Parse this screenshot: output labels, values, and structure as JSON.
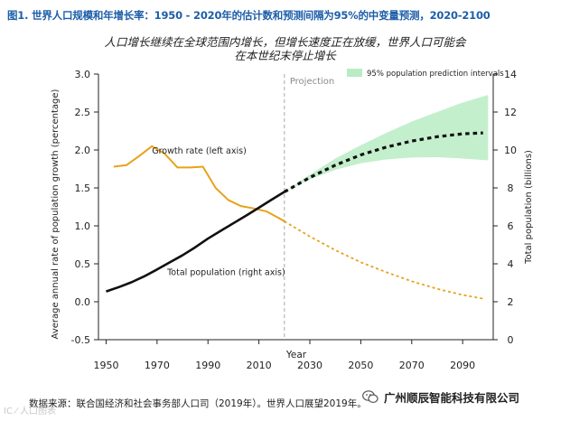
{
  "header": {
    "title": "图1. 世界人口规模和年增长率：1950 - 2020年的估计数和预测间隔为95%的中变量预测，2020-2100",
    "subtitle_line1": "人口增长继续在全球范围内增长，但增长速度正在放缓，世界人口可能会",
    "subtitle_line2": "在本世纪末停止增长"
  },
  "chart_data": {
    "type": "line",
    "xlabel": "Year",
    "ylabel_left": "Average annual rate of population growth (percentage)",
    "ylabel_right": "Total population (billions)",
    "x_ticks": [
      1950,
      1970,
      1990,
      2010,
      2030,
      2050,
      2070,
      2090
    ],
    "y_left_ticks": [
      "-0.5",
      "0.0",
      "0.5",
      "1.0",
      "1.5",
      "2.0",
      "2.5",
      "3.0"
    ],
    "y_left_lim": [
      -0.5,
      3.0
    ],
    "y_right_ticks": [
      "0",
      "2",
      "4",
      "6",
      "8",
      "10",
      "12",
      "14"
    ],
    "y_right_lim": [
      0,
      14
    ],
    "x_lim": [
      1947,
      2102
    ],
    "projection_year": 2020,
    "projection_label": "Projection",
    "legend_label": "95% population prediction intervals",
    "colors": {
      "growth": "#e8a21a",
      "population": "#111111",
      "band": "#b9ecc4"
    },
    "series": [
      {
        "name": "Growth rate (left axis)",
        "axis": "left",
        "estimate": {
          "x": [
            1953,
            1958,
            1963,
            1968,
            1973,
            1978,
            1983,
            1988,
            1993,
            1998,
            2003,
            2008,
            2013,
            2018,
            2020
          ],
          "y": [
            1.78,
            1.8,
            1.92,
            2.05,
            1.95,
            1.77,
            1.77,
            1.78,
            1.5,
            1.34,
            1.26,
            1.23,
            1.19,
            1.1,
            1.06
          ]
        },
        "projection": {
          "x": [
            2020,
            2030,
            2040,
            2050,
            2060,
            2070,
            2080,
            2090,
            2098
          ],
          "y": [
            1.06,
            0.86,
            0.68,
            0.52,
            0.39,
            0.27,
            0.17,
            0.09,
            0.04
          ]
        }
      },
      {
        "name": "Total population (right axis)",
        "axis": "right",
        "estimate": {
          "x": [
            1950,
            1955,
            1960,
            1965,
            1970,
            1975,
            1980,
            1985,
            1990,
            1995,
            2000,
            2005,
            2010,
            2015,
            2020
          ],
          "y": [
            2.54,
            2.77,
            3.03,
            3.34,
            3.7,
            4.08,
            4.45,
            4.87,
            5.33,
            5.74,
            6.14,
            6.54,
            6.96,
            7.38,
            7.79
          ]
        },
        "projection": {
          "x": [
            2020,
            2030,
            2040,
            2050,
            2060,
            2070,
            2080,
            2090,
            2098
          ],
          "y": [
            7.79,
            8.55,
            9.2,
            9.74,
            10.15,
            10.47,
            10.7,
            10.85,
            10.9
          ]
        }
      }
    ],
    "prediction_interval": {
      "x": [
        2020,
        2030,
        2040,
        2050,
        2060,
        2070,
        2080,
        2090,
        2100
      ],
      "low": [
        7.79,
        8.45,
        8.95,
        9.3,
        9.5,
        9.6,
        9.62,
        9.55,
        9.45
      ],
      "high": [
        7.79,
        8.7,
        9.55,
        10.25,
        10.9,
        11.5,
        12.0,
        12.5,
        12.9
      ]
    },
    "annotations": {
      "growth_label": "Growth rate (left axis)",
      "population_label": "Total population (right axis)"
    }
  },
  "footer": {
    "source": "数据来源：联合国经济和社会事务部人口司（2019年）。世界人口展望2019年。",
    "company": "广州顺辰智能科技有限公司"
  }
}
